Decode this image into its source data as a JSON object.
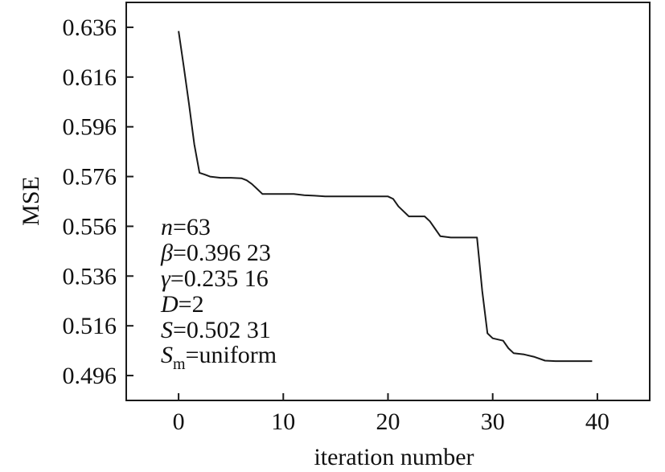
{
  "chart_data": {
    "type": "line",
    "title": "",
    "xlabel": "iteration number",
    "ylabel": "MSE",
    "xlim": [
      -5,
      45
    ],
    "ylim": [
      0.486,
      0.646
    ],
    "xticks": [
      0,
      10,
      20,
      30,
      40
    ],
    "yticks": [
      0.496,
      0.516,
      0.536,
      0.556,
      0.576,
      0.596,
      0.616,
      0.636
    ],
    "grid": false,
    "series": [
      {
        "color": "#1a1a1a",
        "x": [
          0,
          0.5,
          1,
          1.5,
          2,
          2.5,
          3,
          4,
          5,
          6,
          6.5,
          7,
          7.5,
          8,
          9,
          10,
          11,
          12,
          13,
          14,
          15,
          16,
          17,
          18,
          19,
          20,
          20.5,
          21,
          22,
          23,
          23.5,
          24,
          24.5,
          25,
          26,
          27,
          28,
          28.5,
          29,
          29.5,
          30,
          31,
          31.5,
          32,
          33,
          34,
          35,
          36,
          37,
          38,
          39,
          39.5
        ],
        "y": [
          0.6345,
          0.62,
          0.605,
          0.589,
          0.5775,
          0.5768,
          0.576,
          0.5755,
          0.5755,
          0.5753,
          0.5745,
          0.573,
          0.571,
          0.569,
          0.569,
          0.569,
          0.569,
          0.5685,
          0.5683,
          0.568,
          0.568,
          0.568,
          0.568,
          0.568,
          0.568,
          0.568,
          0.567,
          0.564,
          0.56,
          0.56,
          0.56,
          0.558,
          0.555,
          0.552,
          0.5515,
          0.5515,
          0.5515,
          0.5515,
          0.53,
          0.513,
          0.511,
          0.51,
          0.507,
          0.505,
          0.5045,
          0.5035,
          0.502,
          0.5018,
          0.5018,
          0.5018,
          0.5018,
          0.5018
        ]
      }
    ],
    "annotations": {
      "n_var": "n",
      "n_val": "=63",
      "beta_var": "β",
      "beta_val": "=0.396 23",
      "gamma_var": "γ",
      "gamma_val": "=0.235 16",
      "D_var": "D",
      "D_val": "=2",
      "S_var": "S",
      "S_val": "=0.502 31",
      "Sm_var": "S",
      "Sm_sub": "m",
      "Sm_val": "=uniform"
    }
  }
}
